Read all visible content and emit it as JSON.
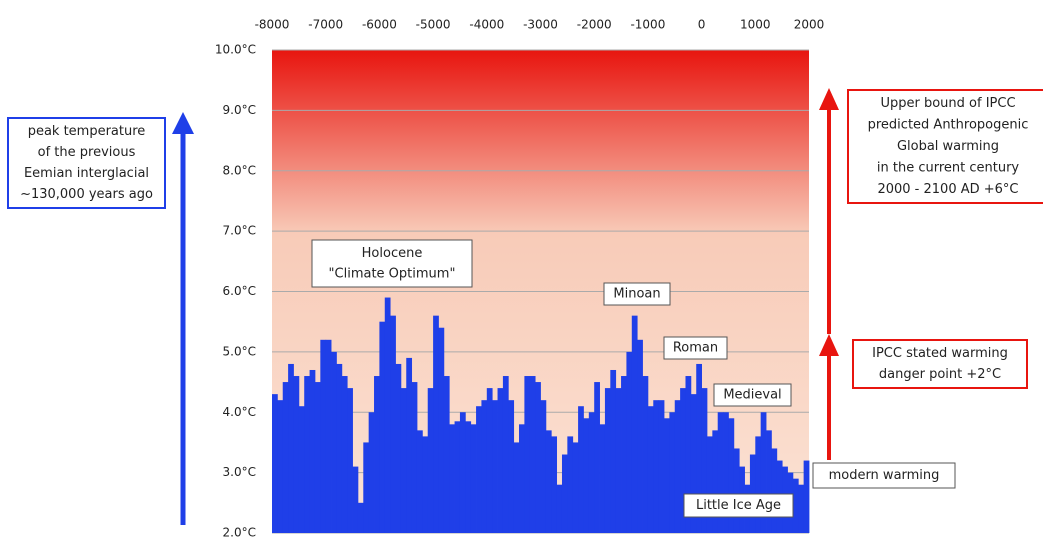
{
  "chart_data": {
    "type": "step-area",
    "x": [
      -8000,
      -7900,
      -7800,
      -7700,
      -7600,
      -7500,
      -7400,
      -7300,
      -7200,
      -7100,
      -7000,
      -6900,
      -6800,
      -6700,
      -6600,
      -6500,
      -6400,
      -6300,
      -6200,
      -6100,
      -6000,
      -5900,
      -5800,
      -5700,
      -5600,
      -5500,
      -5400,
      -5300,
      -5200,
      -5100,
      -5000,
      -4900,
      -4800,
      -4700,
      -4600,
      -4500,
      -4400,
      -4300,
      -4200,
      -4100,
      -4000,
      -3900,
      -3800,
      -3700,
      -3600,
      -3500,
      -3400,
      -3300,
      -3200,
      -3100,
      -3000,
      -2900,
      -2800,
      -2700,
      -2600,
      -2500,
      -2400,
      -2300,
      -2200,
      -2100,
      -2000,
      -1900,
      -1800,
      -1700,
      -1600,
      -1500,
      -1400,
      -1300,
      -1200,
      -1100,
      -1000,
      -900,
      -800,
      -700,
      -600,
      -500,
      -400,
      -300,
      -200,
      -100,
      0,
      100,
      200,
      300,
      400,
      500,
      600,
      700,
      800,
      900,
      1000,
      1100,
      1200,
      1300,
      1400,
      1500,
      1600,
      1700,
      1800,
      1900
    ],
    "series": [
      {
        "color": "#1f3fe8",
        "values": [
          4.3,
          4.2,
          4.5,
          4.8,
          4.6,
          4.1,
          4.6,
          4.7,
          4.5,
          5.2,
          5.2,
          5.0,
          4.8,
          4.6,
          4.4,
          3.1,
          2.5,
          3.5,
          4.0,
          4.6,
          5.5,
          5.9,
          5.6,
          4.8,
          4.4,
          4.9,
          4.5,
          3.7,
          3.6,
          4.4,
          5.6,
          5.4,
          4.6,
          3.8,
          3.85,
          4.0,
          3.85,
          3.8,
          4.1,
          4.2,
          4.4,
          4.2,
          4.4,
          4.6,
          4.2,
          3.5,
          3.8,
          4.6,
          4.6,
          4.5,
          4.2,
          3.7,
          3.6,
          2.8,
          3.3,
          3.6,
          3.5,
          4.1,
          3.9,
          4.0,
          4.5,
          3.8,
          4.4,
          4.7,
          4.4,
          4.6,
          5.0,
          5.6,
          5.2,
          4.6,
          4.1,
          4.2,
          4.2,
          3.9,
          4.0,
          4.2,
          4.4,
          4.6,
          4.3,
          4.8,
          4.4,
          3.6,
          3.7,
          4.0,
          4.0,
          3.9,
          3.4,
          3.1,
          2.8,
          3.3,
          3.6,
          4.0,
          3.7,
          3.4,
          3.2,
          3.1,
          3.0,
          2.9,
          2.8,
          3.2
        ]
      }
    ],
    "xlim": [
      -8000,
      2000
    ],
    "xticks": [
      -8000,
      -7000,
      -6000,
      -5000,
      -4000,
      -3000,
      -2000,
      -1000,
      0,
      1000,
      2000
    ],
    "ylim": [
      2,
      10
    ],
    "yticks": [
      {
        "value": 2,
        "label": "2.0°C"
      },
      {
        "value": 3,
        "label": "3.0°C"
      },
      {
        "value": 4,
        "label": "4.0°C"
      },
      {
        "value": 5,
        "label": "5.0°C"
      },
      {
        "value": 6,
        "label": "6.0°C"
      },
      {
        "value": 7,
        "label": "7.0°C"
      },
      {
        "value": 8,
        "label": "8.0°C"
      },
      {
        "value": 9,
        "label": "9.0°C"
      },
      {
        "value": 10,
        "label": "10.0°C"
      }
    ],
    "grid": true,
    "annotations": [
      {
        "lines": [
          "peak temperature",
          "of the previous",
          "Eemian interglacial",
          "~130,000 years ago"
        ]
      },
      {
        "lines": [
          "Holocene",
          "\"Climate Optimum\""
        ]
      },
      {
        "lines": [
          "Minoan"
        ]
      },
      {
        "lines": [
          "Roman"
        ]
      },
      {
        "lines": [
          "Medieval"
        ]
      },
      {
        "lines": [
          "Little Ice Age"
        ]
      },
      {
        "lines": [
          "modern warming"
        ]
      },
      {
        "lines": [
          "Upper bound of IPCC",
          "predicted Anthropogenic",
          "Global warming",
          "in the current century",
          "2000 - 2100 AD +6°C"
        ]
      },
      {
        "lines": [
          "IPCC stated warming",
          "danger point +2°C"
        ]
      }
    ]
  }
}
